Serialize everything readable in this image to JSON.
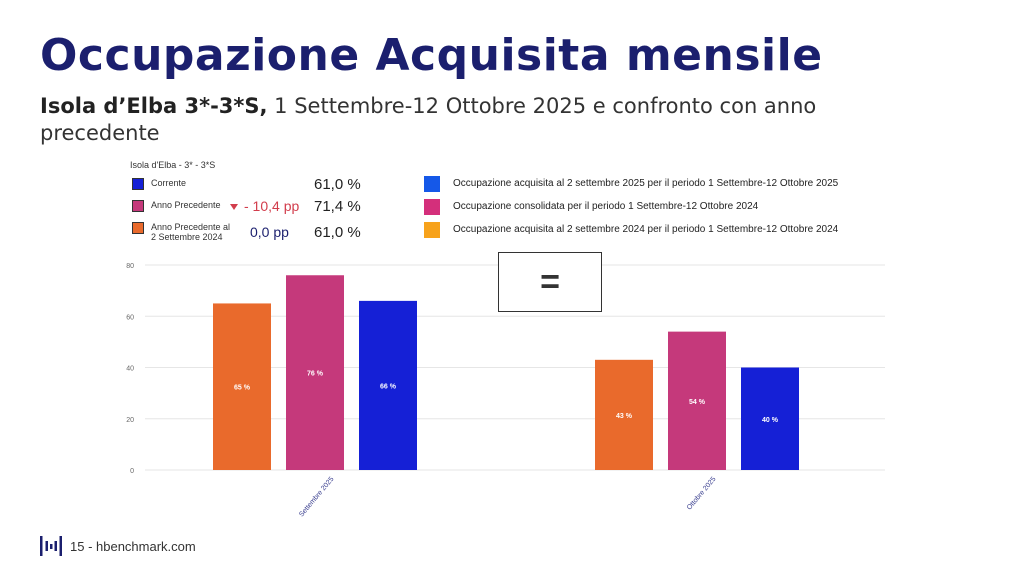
{
  "title": "Occupazione Acquisita mensile",
  "subtitle_bold": "Isola d’Elba 3*-3*S,",
  "subtitle_rest": " 1 Settembre-12 Ottobre 2025 e confronto con anno precedente",
  "legend_box": {
    "title": "Isola d'Elba - 3* - 3*S",
    "rows": [
      {
        "label": "Corrente",
        "delta": "",
        "value": "61,0 %",
        "color": "#1520d6"
      },
      {
        "label": "Anno Precedente",
        "delta": "- 10,4 pp",
        "value": "71,4 %",
        "color": "#c5397b"
      },
      {
        "label": "Anno Precedente al 2 Settembre 2024",
        "label_line1": "Anno Precedente al",
        "label_line2": "2 Settembre 2024",
        "delta": "0,0 pp",
        "value": "61,0 %",
        "color": "#e96a2c"
      }
    ]
  },
  "right_legend": [
    {
      "text": "Occupazione acquisita al 2 settembre 2025 per il periodo 1 Settembre-12 Ottobre 2025",
      "color": "#1558e8"
    },
    {
      "text": "Occupazione consolidata per il periodo 1 Settembre-12 Ottobre 2024",
      "color": "#d42f7b"
    },
    {
      "text": "Occupazione acquisita al 2 settembre 2024 per il periodo 1 Settembre-12 Ottobre 2024",
      "color": "#f7a21b"
    }
  ],
  "equals_symbol": "=",
  "chart_data": {
    "type": "bar",
    "categories": [
      "Settembre 2025",
      "Ottobre 2025"
    ],
    "series": [
      {
        "values": [
          65,
          43
        ],
        "labels": [
          "65 %",
          "43 %"
        ],
        "color": "#e96a2c"
      },
      {
        "values": [
          76,
          54
        ],
        "labels": [
          "76 %",
          "54 %"
        ],
        "color": "#c5397b"
      },
      {
        "values": [
          66,
          40
        ],
        "labels": [
          "66 %",
          "40 %"
        ],
        "color": "#1520d6"
      }
    ],
    "yticks": [
      0,
      20,
      40,
      60,
      80
    ],
    "ylim": [
      0,
      80
    ],
    "grid": true
  },
  "footer": {
    "text": "15 - hbenchmark.com"
  }
}
